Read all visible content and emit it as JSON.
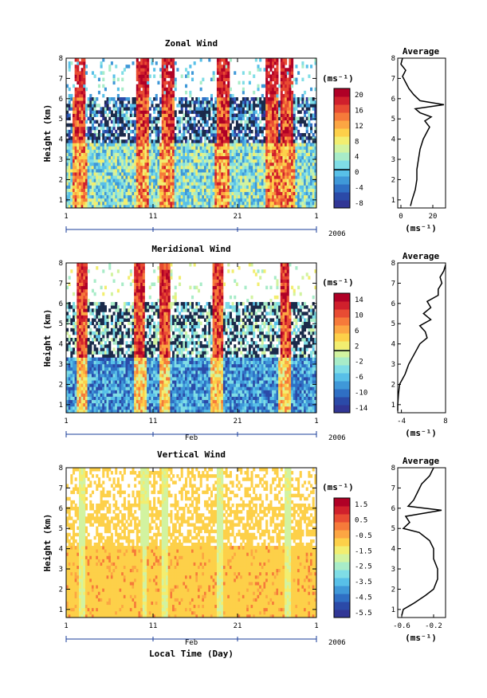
{
  "colors": {
    "scale": [
      "#313695",
      "#2b4aa8",
      "#2f6fc4",
      "#3f98d8",
      "#58c0e8",
      "#7fdde6",
      "#a8ecc8",
      "#d2f3a0",
      "#f2ee70",
      "#fdd049",
      "#fca643",
      "#f67a3a",
      "#e84c33",
      "#d0202c",
      "#b00026"
    ],
    "panel_bg": "#ffffff",
    "avg_line": "#000000",
    "time_axis": "#1a3c9a"
  },
  "x_axis": {
    "ticks": [
      "1",
      "11",
      "21",
      "1"
    ],
    "month": "Feb",
    "year": "2006",
    "label": "Local Time (Day)"
  },
  "y_axis": {
    "label": "Height (km)",
    "ticks": [
      "1",
      "2",
      "3",
      "4",
      "5",
      "6",
      "7",
      "8"
    ]
  },
  "panels": [
    {
      "title": "Zonal Wind",
      "colorbar_unit": "(ms⁻¹)",
      "colorbar_ticks": [
        "20",
        "16",
        "12",
        "8",
        "4",
        "0",
        "-4",
        "-8"
      ],
      "avg_title": "Average",
      "avg_xticks": [
        "0",
        "20"
      ],
      "avg_xunit": "(ms⁻¹)"
    },
    {
      "title": "Meridional Wind",
      "colorbar_unit": "(ms⁻¹)",
      "colorbar_ticks": [
        "14",
        "10",
        "6",
        "2",
        "-2",
        "-6",
        "-10",
        "-14"
      ],
      "avg_title": "Average",
      "avg_xticks": [
        "-4",
        "8"
      ],
      "avg_xunit": "(ms⁻¹)"
    },
    {
      "title": "Vertical Wind",
      "colorbar_unit": "(ms⁻¹)",
      "colorbar_ticks": [
        "1.5",
        "0.5",
        "-0.5",
        "-1.5",
        "-2.5",
        "-3.5",
        "-4.5",
        "-5.5"
      ],
      "avg_title": "Average",
      "avg_xticks": [
        "-0.6",
        "-0.2"
      ],
      "avg_xunit": "(ms⁻¹)"
    }
  ],
  "chart_data": [
    {
      "type": "heatmap",
      "title": "Zonal Wind",
      "ylabel": "Height (km)",
      "ylim": [
        0.6,
        8
      ],
      "x_ticks": [
        "1",
        "11",
        "21",
        "1"
      ],
      "colorbar_range": [
        -8,
        20
      ],
      "profile": {
        "title": "Average",
        "xlabel": "(ms⁻¹)",
        "xlim": [
          -2,
          28
        ],
        "heights": [
          0.7,
          1.0,
          1.5,
          2.0,
          2.5,
          3.0,
          3.5,
          4.0,
          4.3,
          4.6,
          4.9,
          5.1,
          5.3,
          5.5,
          5.7,
          5.9,
          6.2,
          6.5,
          6.8,
          7.1,
          7.4,
          7.7,
          8.0
        ],
        "values": [
          6,
          7,
          9,
          10,
          10,
          11,
          12,
          14,
          16,
          18,
          15,
          19,
          12,
          9,
          27,
          12,
          8,
          5,
          3,
          1,
          3,
          0,
          1
        ]
      }
    },
    {
      "type": "heatmap",
      "title": "Meridional Wind",
      "ylabel": "Height (km)",
      "ylim": [
        0.6,
        8
      ],
      "x_ticks": [
        "1",
        "11",
        "21",
        "1"
      ],
      "colorbar_range": [
        -14,
        14
      ],
      "profile": {
        "title": "Average",
        "xlabel": "(ms⁻¹)",
        "xlim": [
          -5,
          8
        ],
        "heights": [
          0.7,
          1.0,
          1.5,
          2.0,
          2.5,
          3.0,
          3.5,
          4.0,
          4.3,
          4.6,
          4.9,
          5.2,
          5.5,
          5.8,
          6.1,
          6.4,
          6.7,
          7.0,
          7.3,
          7.6,
          7.9
        ],
        "values": [
          -5,
          -5,
          -4.8,
          -4.5,
          -3,
          -2,
          -0.5,
          1,
          3,
          2.5,
          1,
          4,
          2,
          4,
          3,
          6,
          6,
          7,
          6.5,
          7.5,
          8
        ]
      }
    },
    {
      "type": "heatmap",
      "title": "Vertical Wind",
      "ylabel": "Height (km)",
      "ylim": [
        0.6,
        8
      ],
      "x_ticks": [
        "1",
        "11",
        "21",
        "1"
      ],
      "colorbar_range": [
        -5.5,
        1.5
      ],
      "profile": {
        "title": "Average",
        "xlabel": "(ms⁻¹)",
        "xlim": [
          -0.65,
          -0.05
        ],
        "heights": [
          0.7,
          1.0,
          1.3,
          1.7,
          2.0,
          2.5,
          3.0,
          3.5,
          4.0,
          4.4,
          4.8,
          5.0,
          5.3,
          5.6,
          5.9,
          6.1,
          6.4,
          6.8,
          7.2,
          7.6,
          8.0
        ],
        "values": [
          -0.6,
          -0.58,
          -0.45,
          -0.3,
          -0.2,
          -0.15,
          -0.15,
          -0.2,
          -0.2,
          -0.25,
          -0.38,
          -0.58,
          -0.5,
          -0.55,
          -0.1,
          -0.52,
          -0.45,
          -0.4,
          -0.35,
          -0.25,
          -0.2
        ]
      }
    }
  ]
}
